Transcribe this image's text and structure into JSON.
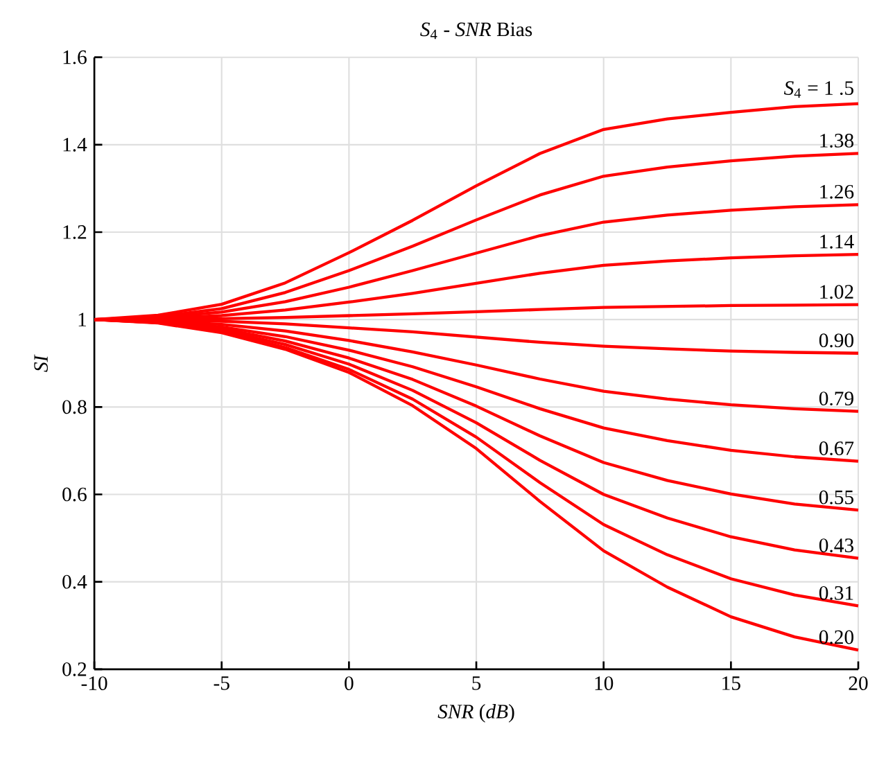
{
  "chart_data": {
    "type": "line",
    "title": "*S*$_{4}$ - *SNR* Bias",
    "xlabel": "*SNR* (*dB*)",
    "ylabel": "*SI*",
    "x": [
      -10,
      -7.5,
      -5,
      -2.5,
      0,
      2.5,
      5,
      7.5,
      10,
      12.5,
      15,
      17.5,
      20
    ],
    "xlim": [
      -10,
      20
    ],
    "xticks": [
      -10,
      -5,
      0,
      5,
      10,
      15,
      20
    ],
    "ylim": [
      0.2,
      1.6
    ],
    "yticks": [
      0.2,
      0.4,
      0.6,
      0.8,
      1,
      1.2,
      1.4,
      1.6
    ],
    "grid": true,
    "legend": false,
    "marker": "none",
    "line_style": "solid",
    "series": [
      {
        "name": "*S*$_{4}$ = 1 .5",
        "color": "#ff0000",
        "values": [
          1,
          1.01,
          1.035,
          1.084,
          1.153,
          1.227,
          1.306,
          1.38,
          1.435,
          1.459,
          1.474,
          1.487,
          1.494
        ]
      },
      {
        "name": "1.38",
        "color": "#ff0000",
        "values": [
          1,
          1.007,
          1.025,
          1.062,
          1.112,
          1.168,
          1.228,
          1.285,
          1.328,
          1.349,
          1.363,
          1.374,
          1.38
        ]
      },
      {
        "name": "1.26",
        "color": "#ff0000",
        "values": [
          1,
          1.005,
          1.017,
          1.041,
          1.074,
          1.112,
          1.152,
          1.192,
          1.223,
          1.239,
          1.25,
          1.258,
          1.263
        ]
      },
      {
        "name": "1.14",
        "color": "#ff0000",
        "values": [
          1,
          1.003,
          1.009,
          1.022,
          1.04,
          1.06,
          1.083,
          1.106,
          1.124,
          1.134,
          1.141,
          1.146,
          1.149
        ]
      },
      {
        "name": "1.02",
        "color": "#ff0000",
        "values": [
          1,
          1.001,
          1.002,
          1.005,
          1.009,
          1.013,
          1.018,
          1.023,
          1.028,
          1.03,
          1.032,
          1.033,
          1.034
        ]
      },
      {
        "name": "0.90",
        "color": "#ff0000",
        "values": [
          1,
          0.999,
          0.996,
          0.99,
          0.981,
          0.972,
          0.96,
          0.948,
          0.939,
          0.933,
          0.928,
          0.925,
          0.923
        ]
      },
      {
        "name": "0.79",
        "color": "#ff0000",
        "values": [
          1,
          0.997,
          0.989,
          0.974,
          0.952,
          0.926,
          0.896,
          0.864,
          0.836,
          0.818,
          0.805,
          0.796,
          0.79
        ]
      },
      {
        "name": "0.67",
        "color": "#ff0000",
        "values": [
          1,
          0.995,
          0.983,
          0.961,
          0.93,
          0.892,
          0.846,
          0.796,
          0.752,
          0.723,
          0.701,
          0.686,
          0.676
        ]
      },
      {
        "name": "0.55",
        "color": "#ff0000",
        "values": [
          1,
          0.994,
          0.979,
          0.951,
          0.912,
          0.863,
          0.802,
          0.734,
          0.673,
          0.632,
          0.601,
          0.578,
          0.564
        ]
      },
      {
        "name": "0.43",
        "color": "#ff0000",
        "values": [
          1,
          0.993,
          0.975,
          0.943,
          0.898,
          0.838,
          0.764,
          0.678,
          0.6,
          0.546,
          0.503,
          0.473,
          0.454
        ]
      },
      {
        "name": "0.31",
        "color": "#ff0000",
        "values": [
          1,
          0.993,
          0.972,
          0.936,
          0.886,
          0.818,
          0.731,
          0.627,
          0.531,
          0.462,
          0.407,
          0.37,
          0.345
        ]
      },
      {
        "name": "0.20",
        "color": "#ff0000",
        "values": [
          1,
          0.992,
          0.97,
          0.932,
          0.879,
          0.803,
          0.705,
          0.584,
          0.471,
          0.388,
          0.32,
          0.274,
          0.244
        ]
      }
    ]
  }
}
